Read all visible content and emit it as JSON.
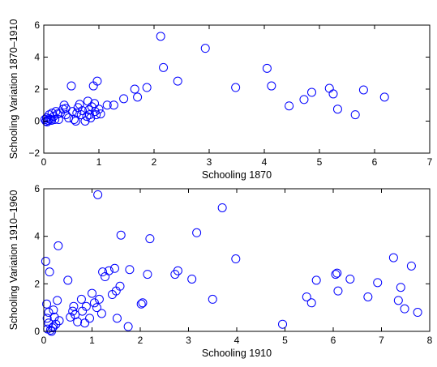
{
  "chart_data": [
    {
      "type": "scatter",
      "xlabel": "Schooling 1870",
      "ylabel": "Schooling Variation 1870–1910",
      "xlim": [
        0,
        7
      ],
      "ylim": [
        -2,
        6
      ],
      "xticks": [
        0,
        1,
        2,
        3,
        4,
        5,
        6,
        7
      ],
      "yticks": [
        -2,
        0,
        2,
        4,
        6
      ],
      "xtick_labels": [
        "0",
        "1",
        "2",
        "3",
        "4",
        "5",
        "6",
        "7"
      ],
      "ytick_labels": [
        "−2",
        "0",
        "2",
        "4",
        "6"
      ],
      "marker": "circle-open",
      "color": "#0000ff",
      "grid": false,
      "points": [
        [
          0.02,
          0.1
        ],
        [
          0.04,
          0.0
        ],
        [
          0.05,
          0.2
        ],
        [
          0.06,
          -0.05
        ],
        [
          0.08,
          0.05
        ],
        [
          0.1,
          0.4
        ],
        [
          0.1,
          0.15
        ],
        [
          0.12,
          0.1
        ],
        [
          0.14,
          0.05
        ],
        [
          0.15,
          0.5
        ],
        [
          0.18,
          0.3
        ],
        [
          0.2,
          0.1
        ],
        [
          0.22,
          0.6
        ],
        [
          0.25,
          0.45
        ],
        [
          0.27,
          0.1
        ],
        [
          0.3,
          0.5
        ],
        [
          0.35,
          0.75
        ],
        [
          0.37,
          1.0
        ],
        [
          0.4,
          0.8
        ],
        [
          0.4,
          0.4
        ],
        [
          0.45,
          0.2
        ],
        [
          0.5,
          2.2
        ],
        [
          0.52,
          0.6
        ],
        [
          0.55,
          0.1
        ],
        [
          0.58,
          0.0
        ],
        [
          0.6,
          0.5
        ],
        [
          0.62,
          0.85
        ],
        [
          0.65,
          1.05
        ],
        [
          0.68,
          0.4
        ],
        [
          0.7,
          0.65
        ],
        [
          0.75,
          0.0
        ],
        [
          0.78,
          0.3
        ],
        [
          0.8,
          1.25
        ],
        [
          0.82,
          0.7
        ],
        [
          0.83,
          0.4
        ],
        [
          0.85,
          0.2
        ],
        [
          0.87,
          0.9
        ],
        [
          0.9,
          2.2
        ],
        [
          0.92,
          1.1
        ],
        [
          0.93,
          0.6
        ],
        [
          0.95,
          0.4
        ],
        [
          0.97,
          2.5
        ],
        [
          1.0,
          0.75
        ],
        [
          1.03,
          0.45
        ],
        [
          1.15,
          1.0
        ],
        [
          1.27,
          1.0
        ],
        [
          1.45,
          1.4
        ],
        [
          1.65,
          2.0
        ],
        [
          1.7,
          1.5
        ],
        [
          1.87,
          2.1
        ],
        [
          2.12,
          5.3
        ],
        [
          2.17,
          3.35
        ],
        [
          2.43,
          2.5
        ],
        [
          2.93,
          4.55
        ],
        [
          3.48,
          2.1
        ],
        [
          4.05,
          3.3
        ],
        [
          4.13,
          2.2
        ],
        [
          4.45,
          0.95
        ],
        [
          4.72,
          1.35
        ],
        [
          4.86,
          1.8
        ],
        [
          5.18,
          2.05
        ],
        [
          5.25,
          1.7
        ],
        [
          5.33,
          0.75
        ],
        [
          5.65,
          0.4
        ],
        [
          5.8,
          1.95
        ],
        [
          6.18,
          1.5
        ]
      ]
    },
    {
      "type": "scatter",
      "xlabel": "Schooling 1910",
      "ylabel": "Schooling Variation 1910–1960",
      "xlim": [
        0,
        8
      ],
      "ylim": [
        0,
        6
      ],
      "xticks": [
        0,
        1,
        2,
        3,
        4,
        5,
        6,
        7,
        8
      ],
      "yticks": [
        0,
        2,
        4,
        6
      ],
      "xtick_labels": [
        "0",
        "1",
        "2",
        "3",
        "4",
        "5",
        "6",
        "7",
        "8"
      ],
      "ytick_labels": [
        "0",
        "2",
        "4",
        "6"
      ],
      "marker": "circle-open",
      "color": "#0000ff",
      "grid": false,
      "points": [
        [
          0.04,
          2.95
        ],
        [
          0.06,
          1.15
        ],
        [
          0.07,
          0.55
        ],
        [
          0.08,
          0.1
        ],
        [
          0.1,
          0.35
        ],
        [
          0.1,
          0.8
        ],
        [
          0.12,
          2.5
        ],
        [
          0.14,
          0.05
        ],
        [
          0.16,
          0.0
        ],
        [
          0.18,
          0.15
        ],
        [
          0.2,
          0.9
        ],
        [
          0.2,
          0.2
        ],
        [
          0.22,
          0.6
        ],
        [
          0.25,
          0.3
        ],
        [
          0.28,
          1.3
        ],
        [
          0.3,
          3.6
        ],
        [
          0.32,
          0.45
        ],
        [
          0.5,
          2.15
        ],
        [
          0.55,
          0.6
        ],
        [
          0.6,
          0.85
        ],
        [
          0.62,
          1.05
        ],
        [
          0.65,
          0.7
        ],
        [
          0.7,
          0.4
        ],
        [
          0.78,
          1.35
        ],
        [
          0.8,
          0.85
        ],
        [
          0.85,
          0.35
        ],
        [
          0.88,
          1.05
        ],
        [
          0.95,
          0.55
        ],
        [
          1.0,
          1.6
        ],
        [
          1.05,
          1.2
        ],
        [
          1.1,
          1.0
        ],
        [
          1.12,
          5.75
        ],
        [
          1.15,
          1.35
        ],
        [
          1.2,
          0.75
        ],
        [
          1.22,
          2.5
        ],
        [
          1.27,
          2.3
        ],
        [
          1.35,
          2.55
        ],
        [
          1.42,
          1.55
        ],
        [
          1.47,
          2.65
        ],
        [
          1.5,
          1.7
        ],
        [
          1.52,
          0.55
        ],
        [
          1.58,
          1.9
        ],
        [
          1.6,
          4.05
        ],
        [
          1.75,
          0.2
        ],
        [
          1.78,
          2.6
        ],
        [
          2.02,
          1.15
        ],
        [
          2.05,
          1.2
        ],
        [
          2.15,
          2.4
        ],
        [
          2.2,
          3.9
        ],
        [
          2.72,
          2.4
        ],
        [
          2.78,
          2.55
        ],
        [
          3.07,
          2.2
        ],
        [
          3.17,
          4.15
        ],
        [
          3.5,
          1.35
        ],
        [
          3.7,
          5.2
        ],
        [
          3.98,
          3.05
        ],
        [
          4.95,
          0.3
        ],
        [
          5.45,
          1.45
        ],
        [
          5.55,
          1.2
        ],
        [
          5.65,
          2.15
        ],
        [
          6.05,
          2.4
        ],
        [
          6.08,
          2.45
        ],
        [
          6.1,
          1.7
        ],
        [
          6.35,
          2.2
        ],
        [
          6.72,
          1.45
        ],
        [
          6.92,
          2.05
        ],
        [
          7.25,
          3.1
        ],
        [
          7.35,
          1.3
        ],
        [
          7.4,
          1.85
        ],
        [
          7.48,
          0.95
        ],
        [
          7.62,
          2.75
        ],
        [
          7.75,
          0.8
        ]
      ]
    }
  ]
}
